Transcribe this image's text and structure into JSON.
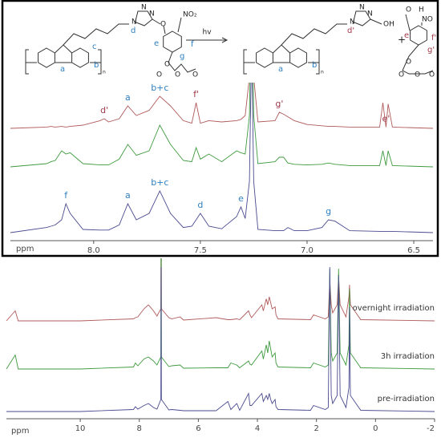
{
  "scheme": {
    "left": {
      "atoms": [
        "N",
        "N",
        "N",
        "O",
        "NO₂",
        "O",
        "O",
        "O",
        "O",
        "n"
      ],
      "labels": [
        "a",
        "b",
        "c",
        "d",
        "e",
        "f",
        "g"
      ]
    },
    "arrow": "hv",
    "right": {
      "atoms": [
        "N",
        "N",
        "N",
        "OH",
        "n"
      ],
      "labels": [
        "a",
        "b",
        "d'"
      ]
    },
    "plus": "+",
    "product": {
      "atoms": [
        "O",
        "H",
        "NO",
        "O",
        "O",
        "O",
        "O"
      ],
      "labels": [
        "e'",
        "f'",
        "g'"
      ]
    }
  },
  "chart_data": [
    {
      "type": "line",
      "xlabel": "ppm",
      "xlim": [
        8.39,
        6.41
      ],
      "xticks": [
        {
          "value": 8,
          "label": "8.0"
        },
        7.5,
        {
          "value": 7,
          "label": "7.0"
        },
        6.5
      ],
      "x": [
        8.39,
        8.22,
        8.2,
        8.18,
        8.15,
        8.13,
        8.11,
        8.05,
        7.97,
        7.95,
        7.93,
        7.88,
        7.84,
        7.8,
        7.74,
        7.69,
        7.64,
        7.58,
        7.54,
        7.52,
        7.5,
        7.46,
        7.4,
        7.33,
        7.31,
        7.29,
        7.27,
        7.26,
        7.25,
        7.23,
        7.15,
        7.13,
        7.11,
        7.09,
        7.06,
        7.0,
        6.93,
        6.9,
        6.87,
        6.8,
        6.66,
        6.645,
        6.63,
        6.62,
        6.6,
        6.41
      ],
      "series": [
        {
          "color": "#b05a5a",
          "values": [
            0,
            2,
            3,
            2,
            3,
            2,
            3,
            5,
            12,
            15,
            10,
            15,
            35,
            20,
            28,
            50,
            35,
            12,
            8,
            40,
            8,
            12,
            10,
            12,
            14,
            20,
            80,
            300,
            80,
            10,
            12,
            25,
            22,
            18,
            12,
            6,
            4,
            3,
            3,
            2,
            2,
            40,
            2,
            38,
            2,
            0
          ],
          "labels": [
            {
              "text": "d'",
              "x": 7.95,
              "color": "#a03a4a"
            },
            {
              "text": "a",
              "x": 7.84,
              "color": "#2e7fc0"
            },
            {
              "text": "b+c",
              "x": 7.69,
              "color": "#2e7fc0"
            },
            {
              "text": "f'",
              "x": 7.52,
              "color": "#a03a4a"
            },
            {
              "text": "g'",
              "x": 7.13,
              "color": "#a03a4a"
            },
            {
              "text": "e'",
              "x": 6.63,
              "color": "#a03a4a"
            }
          ]
        },
        {
          "color": "#3e9a3e",
          "values": [
            0,
            5,
            8,
            10,
            25,
            20,
            22,
            5,
            3,
            3,
            3,
            12,
            35,
            18,
            25,
            65,
            35,
            10,
            8,
            30,
            12,
            20,
            8,
            25,
            22,
            20,
            80,
            300,
            80,
            5,
            8,
            15,
            15,
            6,
            4,
            3,
            4,
            6,
            4,
            2,
            2,
            25,
            2,
            25,
            2,
            0
          ],
          "labels": []
        },
        {
          "color": "#4a4a90",
          "values": [
            0,
            8,
            10,
            12,
            20,
            45,
            30,
            5,
            4,
            4,
            4,
            12,
            45,
            20,
            30,
            65,
            30,
            8,
            10,
            20,
            30,
            10,
            6,
            25,
            40,
            22,
            80,
            300,
            80,
            5,
            3,
            3,
            3,
            8,
            3,
            3,
            8,
            20,
            18,
            3,
            2,
            2,
            2,
            2,
            2,
            0
          ],
          "labels": [
            {
              "text": "f",
              "x": 8.13,
              "color": "#2e7fc0"
            },
            {
              "text": "a",
              "x": 7.84,
              "color": "#2e7fc0"
            },
            {
              "text": "b+c",
              "x": 7.69,
              "color": "#2e7fc0"
            },
            {
              "text": "d",
              "x": 7.5,
              "color": "#2e7fc0"
            },
            {
              "text": "e",
              "x": 7.31,
              "color": "#2e7fc0"
            },
            {
              "text": "g",
              "x": 6.9,
              "color": "#2e7fc0"
            }
          ]
        }
      ]
    },
    {
      "type": "line",
      "xlabel": "ppm",
      "xlim": [
        12.5,
        -2
      ],
      "xticks": [
        10,
        8,
        6,
        4,
        2,
        0,
        -2
      ],
      "x": [
        12.5,
        12.2,
        12.1,
        10,
        8.2,
        8.13,
        8.05,
        7.84,
        7.69,
        7.52,
        7.4,
        7.27,
        7.26,
        7.25,
        7.0,
        6.9,
        6.62,
        6.5,
        5.4,
        5.0,
        4.9,
        4.7,
        4.6,
        4.3,
        4.25,
        4.2,
        3.85,
        3.8,
        3.7,
        3.65,
        3.6,
        3.55,
        3.5,
        3.4,
        3.37,
        3.3,
        2.2,
        2.1,
        1.7,
        1.6,
        1.55,
        1.5,
        1.45,
        1.3,
        1.25,
        1.2,
        1.0,
        0.9,
        0.88,
        0.85,
        0.5,
        -2
      ],
      "series": [
        {
          "name": "overnight irradiation",
          "color": "#b05a5a",
          "values": [
            0,
            25,
            0,
            0,
            5,
            8,
            10,
            30,
            40,
            25,
            12,
            30,
            400,
            30,
            8,
            5,
            10,
            2,
            8,
            3,
            3,
            5,
            3,
            25,
            15,
            8,
            40,
            25,
            55,
            40,
            60,
            45,
            30,
            35,
            15,
            5,
            3,
            15,
            5,
            10,
            100,
            40,
            20,
            40,
            110,
            40,
            10,
            60,
            90,
            40,
            3,
            0
          ]
        },
        {
          "name": "3h irradiation",
          "color": "#3e9a3e",
          "values": [
            0,
            35,
            0,
            0,
            5,
            15,
            8,
            25,
            30,
            20,
            10,
            30,
            400,
            30,
            6,
            8,
            10,
            2,
            3,
            3,
            15,
            10,
            3,
            20,
            12,
            10,
            45,
            25,
            60,
            40,
            70,
            50,
            30,
            40,
            15,
            5,
            3,
            15,
            5,
            10,
            250,
            40,
            20,
            40,
            250,
            40,
            10,
            60,
            200,
            40,
            3,
            0
          ]
        },
        {
          "name": "pre-irradiation",
          "color": "#4a4a90",
          "values": [
            0,
            0,
            0,
            0,
            5,
            12,
            6,
            15,
            20,
            10,
            6,
            30,
            360,
            30,
            4,
            5,
            3,
            2,
            2,
            25,
            5,
            20,
            3,
            45,
            15,
            15,
            45,
            25,
            40,
            30,
            45,
            30,
            20,
            30,
            12,
            5,
            3,
            15,
            5,
            10,
            360,
            40,
            20,
            40,
            340,
            40,
            10,
            60,
            260,
            40,
            3,
            0
          ]
        }
      ]
    }
  ]
}
